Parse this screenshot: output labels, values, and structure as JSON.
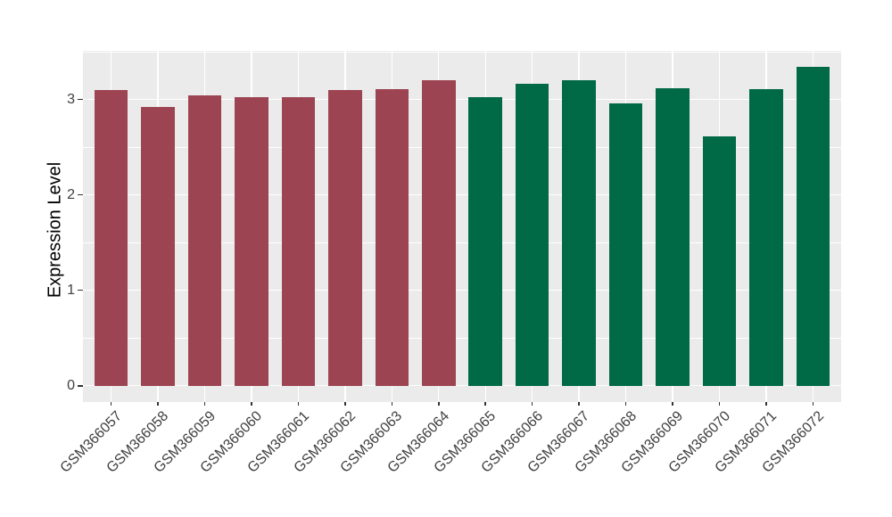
{
  "chart_data": {
    "type": "bar",
    "title": "",
    "xlabel": "",
    "ylabel": "Expression Level",
    "categories": [
      "GSM366057",
      "GSM366058",
      "GSM366059",
      "GSM366060",
      "GSM366061",
      "GSM366062",
      "GSM366063",
      "GSM366064",
      "GSM366065",
      "GSM366066",
      "GSM366067",
      "GSM366068",
      "GSM366069",
      "GSM366070",
      "GSM366071",
      "GSM366072"
    ],
    "values": [
      3.1,
      2.92,
      3.04,
      3.02,
      3.02,
      3.1,
      3.11,
      3.2,
      3.02,
      3.16,
      3.2,
      2.96,
      3.12,
      2.61,
      3.11,
      3.34
    ],
    "bar_groups": [
      0,
      0,
      0,
      0,
      0,
      0,
      0,
      0,
      1,
      1,
      1,
      1,
      1,
      1,
      1,
      1
    ],
    "group_colors": [
      "#9D4452",
      "#006946"
    ],
    "yticks": [
      0,
      1,
      2,
      3
    ],
    "minor_yticks": [
      0.5,
      1.5,
      2.5,
      3.5
    ],
    "ylim": [
      -0.17,
      3.51
    ],
    "grid": "on",
    "legend_position": "none",
    "panel_bg": "#EBEBEB",
    "grid_color": "#FFFFFF",
    "axis_text_color": "#404040",
    "tick_color": "#333333"
  }
}
